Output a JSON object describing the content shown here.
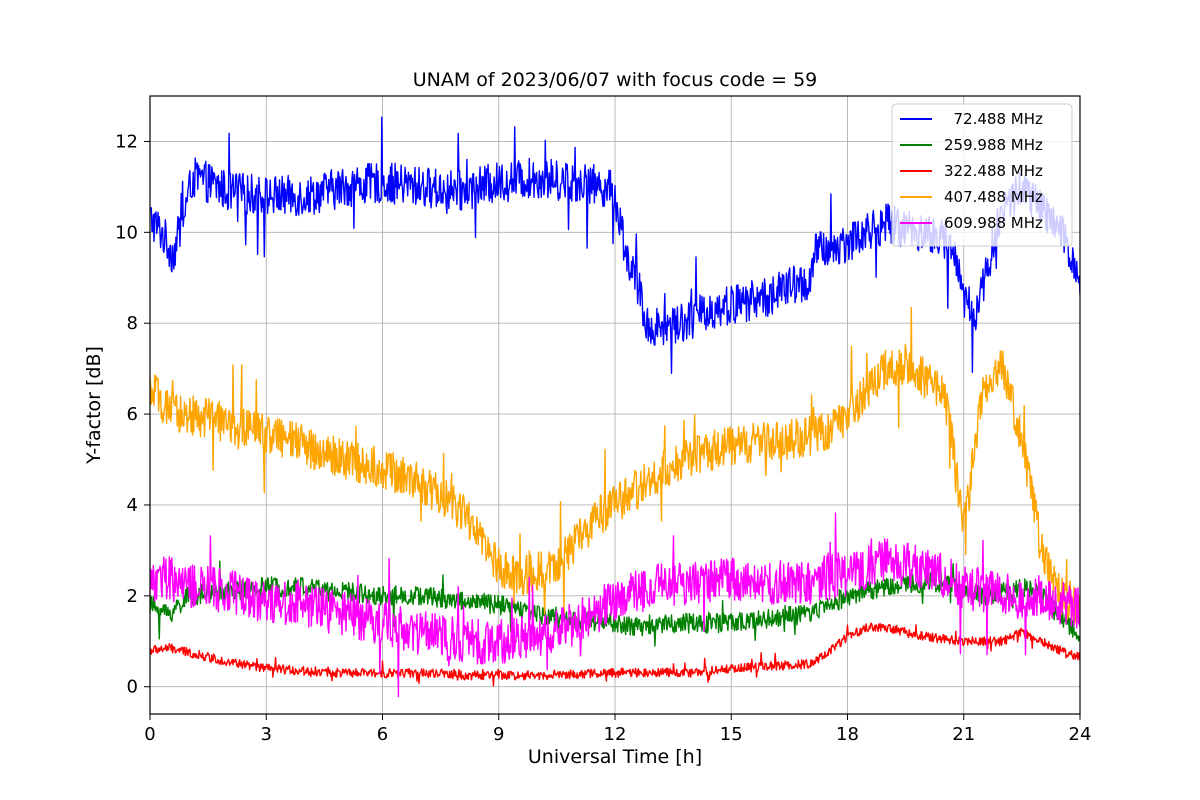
{
  "chart_data": {
    "type": "line",
    "title": "UNAM of 2023/06/07 with focus code = 59",
    "xlabel": "Universal Time [h]",
    "ylabel": "Y-factor [dB]",
    "xlim": [
      0,
      24
    ],
    "ylim": [
      -0.6,
      13
    ],
    "xticks": [
      0,
      3,
      6,
      9,
      12,
      15,
      18,
      21,
      24
    ],
    "yticks": [
      0,
      2,
      4,
      6,
      8,
      10,
      12
    ],
    "grid": true,
    "legend_position": "top-right",
    "series": [
      {
        "name": "  72.488 MHz",
        "color": "#0000ff",
        "noise": 0.45,
        "x": [
          0,
          0.3,
          0.6,
          0.9,
          1.1,
          1.5,
          2,
          3,
          4,
          5,
          6,
          7,
          8,
          9,
          10,
          11,
          11.8,
          12,
          12.3,
          12.6,
          12.8,
          13,
          13.5,
          14,
          14.5,
          15,
          15.5,
          16,
          16.5,
          17,
          17.2,
          17.5,
          18,
          18.5,
          19,
          19.5,
          20,
          20.5,
          20.8,
          21,
          21.3,
          21.6,
          22,
          22.5,
          23,
          23.5,
          24
        ],
        "y": [
          10.3,
          10,
          9.5,
          10.5,
          11.2,
          11.1,
          10.9,
          10.8,
          10.8,
          11,
          11.1,
          11,
          10.9,
          11.1,
          11.2,
          11.1,
          11,
          10.8,
          9.5,
          8.8,
          8,
          7.9,
          8,
          8.1,
          8.3,
          8.4,
          8.5,
          8.6,
          8.8,
          8.9,
          9.6,
          9.6,
          9.8,
          10,
          10.2,
          10.1,
          10,
          9.8,
          9.5,
          8.5,
          8.2,
          9.2,
          10.5,
          11,
          10.5,
          10,
          9
        ]
      },
      {
        "name": "259.988 MHz",
        "color": "#008000",
        "noise": 0.22,
        "x": [
          0,
          0.5,
          1,
          2,
          3,
          4,
          5,
          6,
          7,
          8,
          9,
          10,
          11,
          12,
          12.5,
          13,
          14,
          15,
          16,
          17,
          17.5,
          18,
          19,
          20,
          20.5,
          21,
          21.5,
          22,
          22.5,
          23,
          23.5,
          24
        ],
        "y": [
          1.8,
          1.6,
          2,
          2.1,
          2.2,
          2.2,
          2.1,
          2,
          2,
          1.9,
          1.8,
          1.6,
          1.5,
          1.4,
          1.3,
          1.4,
          1.4,
          1.4,
          1.5,
          1.6,
          1.8,
          2,
          2.2,
          2.3,
          2.3,
          2.1,
          2,
          2.1,
          2.2,
          2,
          1.5,
          1.2
        ]
      },
      {
        "name": "322.488 MHz",
        "color": "#ff0000",
        "noise": 0.1,
        "x": [
          0,
          0.5,
          1,
          2,
          3,
          4,
          5,
          6,
          7,
          8,
          9,
          10,
          11,
          12,
          13,
          14,
          15,
          16,
          17,
          17.5,
          18,
          18.5,
          19,
          19.5,
          20,
          21,
          22,
          22.5,
          23,
          23.5,
          24
        ],
        "y": [
          0.8,
          0.85,
          0.75,
          0.55,
          0.4,
          0.35,
          0.3,
          0.3,
          0.3,
          0.25,
          0.25,
          0.25,
          0.28,
          0.3,
          0.32,
          0.3,
          0.4,
          0.45,
          0.5,
          0.75,
          1.1,
          1.3,
          1.3,
          1.2,
          1.1,
          1.0,
          1.0,
          1.2,
          1.0,
          0.8,
          0.65
        ]
      },
      {
        "name": "407.488 MHz",
        "color": "#ffa500",
        "noise": 0.45,
        "x": [
          0,
          0.3,
          0.5,
          1,
          2,
          3,
          4,
          5,
          6,
          7,
          7.5,
          8,
          8.5,
          9,
          9.5,
          10,
          10.5,
          11,
          11.5,
          12,
          12.5,
          13,
          13.5,
          14,
          15,
          16,
          17,
          17.5,
          18,
          18.5,
          19,
          19.5,
          20,
          20.5,
          21,
          21.5,
          22,
          22.5,
          23,
          23.5,
          24
        ],
        "y": [
          6.5,
          6.3,
          6,
          6,
          5.8,
          5.6,
          5.3,
          5,
          4.8,
          4.5,
          4.2,
          3.9,
          3.3,
          2.6,
          2.4,
          2.5,
          2.6,
          3.2,
          3.7,
          4,
          4.3,
          4.6,
          4.9,
          5.1,
          5.3,
          5.4,
          5.5,
          5.6,
          6,
          6.5,
          7,
          7.1,
          6.8,
          6.5,
          3.5,
          6.5,
          7,
          5.5,
          3,
          2,
          1.8
        ]
      },
      {
        "name": "609.988 MHz",
        "color": "#ff00ff",
        "noise": 0.5,
        "x": [
          0,
          0.5,
          1,
          2,
          3,
          4,
          5,
          6,
          7,
          8,
          9,
          10,
          11,
          12,
          13,
          14,
          15,
          16,
          17,
          18,
          19,
          20,
          21,
          22,
          23,
          24
        ],
        "y": [
          2.3,
          2.4,
          2.2,
          2.1,
          1.9,
          1.8,
          1.6,
          1.4,
          1.2,
          1.0,
          1.0,
          1.1,
          1.4,
          1.9,
          2.2,
          2.3,
          2.4,
          2.3,
          2.3,
          2.5,
          2.8,
          2.6,
          2.2,
          2.0,
          2.0,
          1.7
        ]
      }
    ]
  }
}
